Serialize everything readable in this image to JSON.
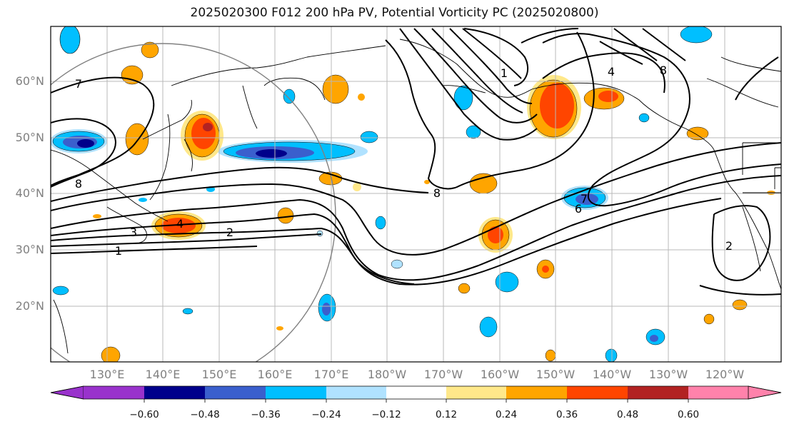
{
  "title": "2025020300 F012 200 hPa PV, Potential Vorticity PC (2025020800)",
  "lat_labels": [
    "60°N",
    "50°N",
    "40°N",
    "30°N",
    "20°N"
  ],
  "lon_labels": [
    "130°E",
    "140°E",
    "150°E",
    "160°E",
    "170°E",
    "180°W",
    "170°W",
    "160°W",
    "150°W",
    "140°W",
    "130°W",
    "120°W"
  ],
  "contour_labels": [
    "7",
    "8",
    "8",
    "4",
    "3",
    "2",
    "1",
    "8",
    "7",
    "6",
    "1",
    "4",
    "2"
  ],
  "colorbar": {
    "ticks": [
      "−0.60",
      "−0.48",
      "−0.36",
      "−0.24",
      "−0.12",
      "0.12",
      "0.24",
      "0.36",
      "0.48",
      "0.60"
    ],
    "colors": [
      "#9932cc",
      "#00008b",
      "#3a5fcd",
      "#00bfff",
      "#b0e2ff",
      "#ffffff",
      "#ffe88a",
      "#ffa500",
      "#ff4500",
      "#b22222",
      "#ff82ab"
    ]
  },
  "anomaly_colors": {
    "pos_light": "#ffe88a",
    "pos_mid": "#ffa500",
    "pos_strong": "#ff4500",
    "pos_max": "#b22222",
    "neg_light": "#b0e2ff",
    "neg_mid": "#00bfff",
    "neg_strong": "#3a5fcd",
    "neg_max": "#00008b"
  }
}
